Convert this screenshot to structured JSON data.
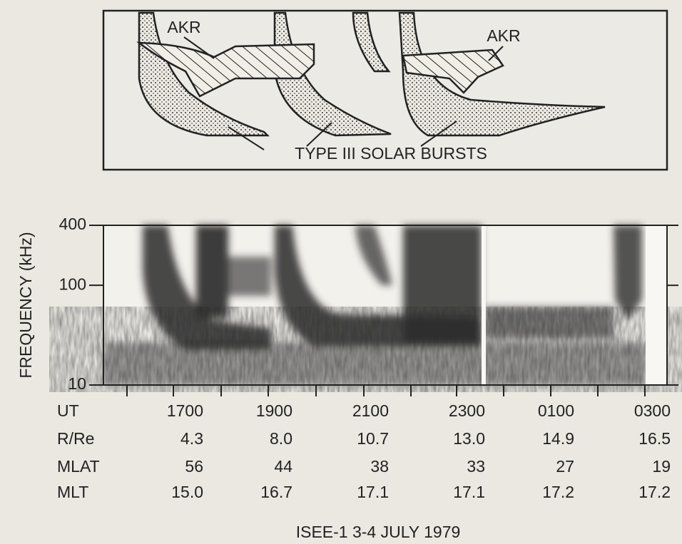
{
  "schematic": {
    "labels": [
      "AKR",
      "AKR"
    ],
    "caption": "TYPE III SOLAR BURSTS"
  },
  "chart_data": {
    "type": "spectrogram",
    "ylabel": "FREQUENCY (kHz)",
    "ylim": [
      10,
      400
    ],
    "yticks": [
      10,
      100,
      400
    ],
    "log_y": true
  },
  "table": {
    "rows": [
      [
        "UT",
        "1700",
        "1900",
        "2100",
        "2300",
        "0100",
        "0300"
      ],
      [
        "R/Re",
        "4.3",
        "8.0",
        "10.7",
        "13.0",
        "14.9",
        "16.5"
      ],
      [
        "MLAT",
        "56",
        "44",
        "38",
        "33",
        "27",
        "19"
      ],
      [
        "MLT",
        "15.0",
        "16.7",
        "17.1",
        "17.1",
        "17.2",
        "17.2"
      ]
    ]
  },
  "caption": "ISEE-1 3-4 JULY 1979"
}
